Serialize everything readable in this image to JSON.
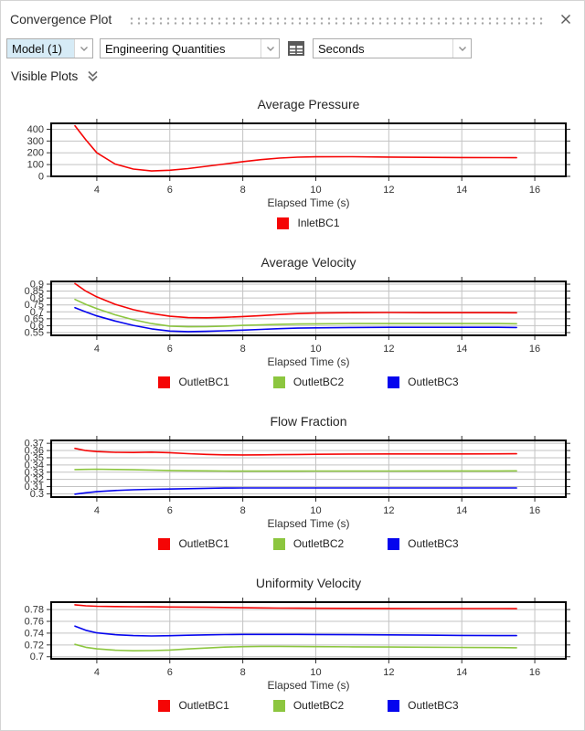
{
  "panel": {
    "title": "Convergence Plot"
  },
  "toolbar": {
    "model_value": "Model (1)",
    "quantities_value": "Engineering Quantities",
    "time_unit_value": "Seconds"
  },
  "visible_plots": {
    "label": "Visible Plots"
  },
  "colors": {
    "series_red": "#f50505",
    "series_green": "#8cc63f",
    "series_blue": "#0505ee",
    "grid": "#c3c3c3",
    "frame": "#000000",
    "model_field_bg": "#d6ebf6",
    "handle_dots": "#a6a6a6",
    "icon_gray": "#5a5a5a"
  },
  "chart_data": [
    {
      "type": "line",
      "title": "Average Pressure",
      "xlabel": "Elapsed Time (s)",
      "xlim": [
        2.75,
        16.85
      ],
      "ylim": [
        0,
        450
      ],
      "x_ticks": [
        4,
        6,
        8,
        10,
        12,
        14,
        16
      ],
      "y_ticks": [
        0,
        100,
        200,
        300,
        400
      ],
      "grid": true,
      "legend_position": "bottom",
      "x": [
        3.4,
        3.7,
        4,
        4.5,
        5,
        5.5,
        6,
        6.5,
        7,
        7.5,
        8,
        8.5,
        9,
        9.5,
        10,
        11,
        12,
        13,
        14,
        15,
        15.5
      ],
      "series": [
        {
          "name": "InletBC1",
          "color": "#f50505",
          "values": [
            430,
            310,
            200,
            105,
            62,
            46,
            52,
            66,
            85,
            105,
            125,
            142,
            155,
            163,
            166,
            167,
            164,
            161,
            160,
            159,
            158
          ]
        }
      ]
    },
    {
      "type": "line",
      "title": "Average Velocity",
      "xlabel": "Elapsed Time (s)",
      "xlim": [
        2.75,
        16.85
      ],
      "ylim": [
        0.53,
        0.92
      ],
      "x_ticks": [
        4,
        6,
        8,
        10,
        12,
        14,
        16
      ],
      "y_ticks": [
        0.55,
        0.6,
        0.65,
        0.7,
        0.75,
        0.8,
        0.85,
        0.9
      ],
      "grid": true,
      "legend_position": "bottom",
      "x": [
        3.4,
        3.7,
        4,
        4.5,
        5,
        5.5,
        6,
        6.5,
        7,
        7.5,
        8,
        8.5,
        9,
        9.5,
        10,
        11,
        12,
        13,
        14,
        15,
        15.5
      ],
      "series": [
        {
          "name": "OutletBC1",
          "color": "#f50505",
          "values": [
            0.905,
            0.85,
            0.808,
            0.755,
            0.716,
            0.688,
            0.668,
            0.658,
            0.657,
            0.66,
            0.666,
            0.673,
            0.681,
            0.687,
            0.691,
            0.694,
            0.695,
            0.694,
            0.694,
            0.694,
            0.693
          ]
        },
        {
          "name": "OutletBC2",
          "color": "#8cc63f",
          "values": [
            0.79,
            0.754,
            0.724,
            0.679,
            0.643,
            0.615,
            0.597,
            0.592,
            0.593,
            0.597,
            0.602,
            0.606,
            0.61,
            0.612,
            0.613,
            0.615,
            0.615,
            0.615,
            0.615,
            0.615,
            0.614
          ]
        },
        {
          "name": "OutletBC3",
          "color": "#0505ee",
          "values": [
            0.73,
            0.699,
            0.671,
            0.634,
            0.602,
            0.577,
            0.561,
            0.557,
            0.559,
            0.563,
            0.568,
            0.573,
            0.578,
            0.582,
            0.584,
            0.587,
            0.588,
            0.588,
            0.588,
            0.588,
            0.587
          ]
        }
      ]
    },
    {
      "type": "line",
      "title": "Flow Fraction",
      "xlabel": "Elapsed Time (s)",
      "xlim": [
        2.75,
        16.85
      ],
      "ylim": [
        0.2955,
        0.374
      ],
      "x_ticks": [
        4,
        6,
        8,
        10,
        12,
        14,
        16
      ],
      "y_ticks": [
        0.3,
        0.31,
        0.32,
        0.33,
        0.34,
        0.35,
        0.36,
        0.37
      ],
      "grid": true,
      "legend_position": "bottom",
      "x": [
        3.4,
        3.7,
        4,
        4.5,
        5,
        5.5,
        6,
        6.5,
        7,
        7.5,
        8,
        8.5,
        9,
        9.5,
        10,
        11,
        12,
        13,
        14,
        15,
        15.5
      ],
      "series": [
        {
          "name": "OutletBC1",
          "color": "#f50505",
          "values": [
            0.363,
            0.36,
            0.3585,
            0.3575,
            0.3573,
            0.3578,
            0.357,
            0.3556,
            0.3546,
            0.354,
            0.3539,
            0.354,
            0.3542,
            0.3545,
            0.3548,
            0.3551,
            0.3552,
            0.3553,
            0.3553,
            0.3554,
            0.3555
          ]
        },
        {
          "name": "OutletBC2",
          "color": "#8cc63f",
          "values": [
            0.3336,
            0.3339,
            0.3341,
            0.3338,
            0.3333,
            0.3328,
            0.3324,
            0.332,
            0.3318,
            0.3316,
            0.3315,
            0.3315,
            0.3315,
            0.3315,
            0.3316,
            0.3316,
            0.3316,
            0.3317,
            0.3317,
            0.3317,
            0.3318
          ]
        },
        {
          "name": "OutletBC3",
          "color": "#0505ee",
          "values": [
            0.2995,
            0.3015,
            0.303,
            0.3046,
            0.3056,
            0.3062,
            0.3066,
            0.3071,
            0.3077,
            0.308,
            0.3081,
            0.3081,
            0.3081,
            0.3081,
            0.3081,
            0.3081,
            0.3081,
            0.3081,
            0.3081,
            0.3081,
            0.3081
          ]
        }
      ]
    },
    {
      "type": "line",
      "title": "Uniformity Velocity",
      "xlabel": "Elapsed Time (s)",
      "xlim": [
        2.75,
        16.85
      ],
      "ylim": [
        0.6965,
        0.7925
      ],
      "x_ticks": [
        4,
        6,
        8,
        10,
        12,
        14,
        16
      ],
      "y_ticks": [
        0.7,
        0.72,
        0.74,
        0.76,
        0.78
      ],
      "grid": true,
      "legend_position": "bottom",
      "x": [
        3.4,
        3.7,
        4,
        4.5,
        5,
        5.5,
        6,
        6.5,
        7,
        7.5,
        8,
        8.5,
        9,
        9.5,
        10,
        11,
        12,
        13,
        14,
        15,
        15.5
      ],
      "series": [
        {
          "name": "OutletBC1",
          "color": "#f50505",
          "values": [
            0.788,
            0.7863,
            0.7855,
            0.785,
            0.7848,
            0.7846,
            0.7843,
            0.7841,
            0.7838,
            0.7835,
            0.7831,
            0.7828,
            0.7825,
            0.7823,
            0.7821,
            0.7819,
            0.7818,
            0.7817,
            0.7817,
            0.7816,
            0.7815
          ]
        },
        {
          "name": "OutletBC2",
          "color": "#8cc63f",
          "values": [
            0.721,
            0.716,
            0.7133,
            0.711,
            0.7101,
            0.7104,
            0.7114,
            0.7132,
            0.7148,
            0.7163,
            0.7171,
            0.7175,
            0.7176,
            0.7173,
            0.7171,
            0.7168,
            0.7165,
            0.7161,
            0.7158,
            0.7155,
            0.7152
          ]
        },
        {
          "name": "OutletBC3",
          "color": "#0505ee",
          "values": [
            0.752,
            0.7448,
            0.7405,
            0.7374,
            0.7358,
            0.7352,
            0.7356,
            0.7364,
            0.7371,
            0.7375,
            0.7378,
            0.7379,
            0.7379,
            0.7378,
            0.7377,
            0.7374,
            0.737,
            0.7366,
            0.7362,
            0.7359,
            0.7358
          ]
        }
      ]
    }
  ]
}
